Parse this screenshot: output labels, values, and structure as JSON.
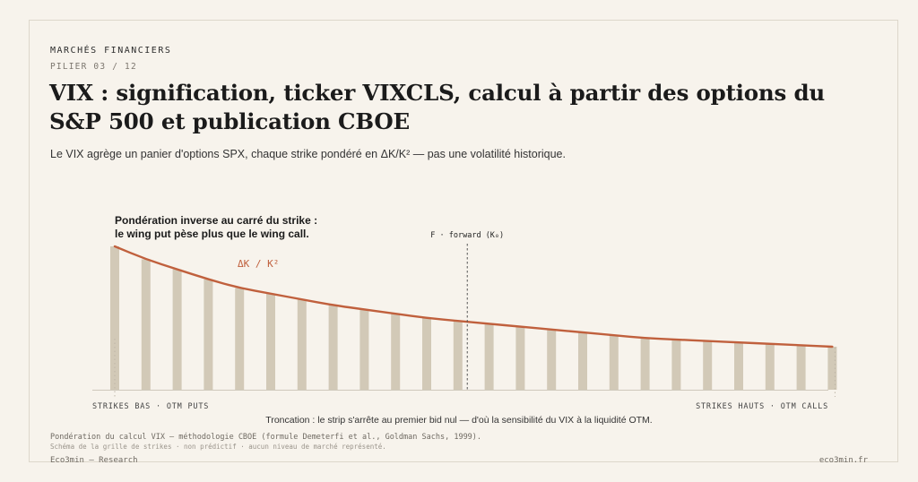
{
  "header": {
    "kicker": "MARCHÉS FINANCIERS",
    "pillar": "PILIER 03 / 12",
    "title": "VIX : signification, ticker VIXCLS, calcul à partir des options du S&P 500 et publication CBOE",
    "subtitle": "Le VIX agrège un panier d'options SPX, chaque strike pondéré en ΔK/K² — pas une volatilité historique."
  },
  "diagram": {
    "annotation_line1": "Pondération inverse au carré du strike :",
    "annotation_line2": "le wing put pèse plus que le wing call.",
    "curve_label": "ΔK / K²",
    "forward_label": "F · forward (K₀)",
    "left_label": "STRIKES BAS · OTM PUTS",
    "right_label": "STRIKES HAUTS · OTM CALLS",
    "truncation_note": "Troncation : le strip s'arrête au premier bid nul — d'où la sensibilité du VIX à la liquidité OTM.",
    "colors": {
      "bar": "#d2c9b7",
      "curve": "#c0603d",
      "axis": "#cfc8bb",
      "forward_line": "#555555"
    },
    "bars": [
      1.0,
      0.91,
      0.84,
      0.77,
      0.71,
      0.67,
      0.63,
      0.59,
      0.56,
      0.53,
      0.5,
      0.48,
      0.46,
      0.44,
      0.42,
      0.4,
      0.38,
      0.36,
      0.35,
      0.34,
      0.33,
      0.32,
      0.31,
      0.3
    ],
    "forward_index": 11.3
  },
  "footer": {
    "source": "Pondération du calcul VIX — méthodologie CBOE (formule Demeterfi et al., Goldman Sachs, 1999).",
    "disclaimer": "Schéma de la grille de strikes · non prédictif · aucun niveau de marché représenté.",
    "brand_left": "Eco3min — Research",
    "brand_right": "eco3min.fr"
  }
}
